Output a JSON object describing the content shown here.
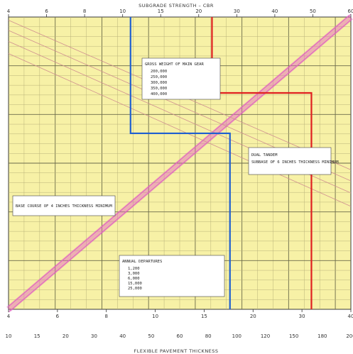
{
  "chart_data": {
    "type": "line",
    "title": "",
    "top_axis": {
      "label": "SUBGRADE STRENGTH – CBR",
      "ticks": [
        "4",
        "6",
        "8",
        "10",
        "15",
        "20",
        "30",
        "40",
        "50",
        "60"
      ],
      "scale": "log"
    },
    "bottom_axis": {
      "label": "FLEXIBLE PAVEMENT THICKNESS",
      "ticks_primary": [
        "4",
        "6",
        "8",
        "10",
        "15",
        "20",
        "30",
        "40"
      ],
      "ticks_secondary": [
        "10",
        "15",
        "20",
        "30",
        "40",
        "50",
        "60",
        "80",
        "100",
        "120",
        "150",
        "180",
        "200"
      ],
      "scale": "log"
    },
    "curve_group_labels": {
      "gross_weight_title": "GROSS WEIGHT OF MAIN GEAR",
      "gross_weights": [
        "200,000",
        "250,000",
        "300,000",
        "350,000",
        "400,000"
      ],
      "annual_departures_title": "ANNUAL DEPARTURES",
      "annual_departures": [
        "1,200",
        "3,000",
        "6,000",
        "15,000",
        "25,000"
      ],
      "equivalent_label": "DUAL TANDEM",
      "subbase_note": "SUBBASE OF 6 INCHES THICKNESS MINIMUM",
      "base_note": "BASE COURSE OF 4 INCHES THICKNESS MINIMUM"
    },
    "series": [
      {
        "name": "",
        "color": "#e060c0",
        "x": [
          4,
          60
        ],
        "y": [
          4,
          40
        ]
      },
      {
        "name": "",
        "color": "#d09090",
        "x": [
          4,
          60
        ],
        "y": [
          30,
          9
        ]
      },
      {
        "name": "",
        "color": "#d09090",
        "x": [
          4,
          60
        ],
        "y": [
          33,
          10
        ]
      },
      {
        "name": "",
        "color": "#d09090",
        "x": [
          4,
          60
        ],
        "y": [
          36,
          11
        ]
      },
      {
        "name": "",
        "color": "#d09090",
        "x": [
          4,
          60
        ],
        "y": [
          39,
          12
        ]
      }
    ],
    "example_paths": [
      {
        "color": "#2060d0",
        "cbr": 10.5,
        "thickness": 16
      },
      {
        "color": "#e02020",
        "cbr": 20,
        "thickness": 22
      }
    ],
    "xlim": [
      4,
      60
    ],
    "ylim": [
      4,
      40
    ],
    "grid": true
  }
}
